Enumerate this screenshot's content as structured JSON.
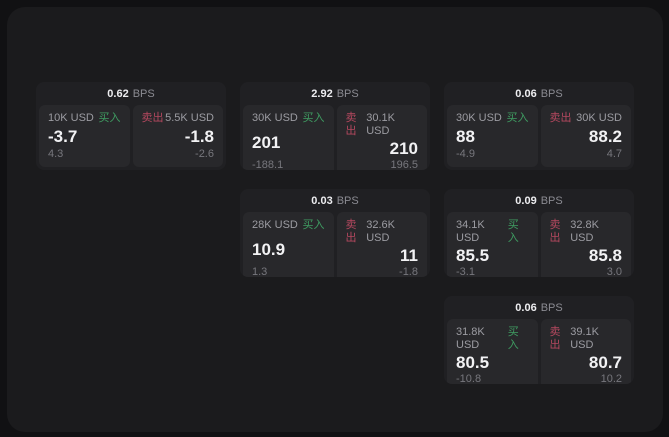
{
  "labels": {
    "buy": "买入",
    "sell": "卖出",
    "bps_suffix": "BPS"
  },
  "colors": {
    "buy_green": "#3f9d62",
    "sell_red": "#b5485f",
    "panel_bg": "#1b1b1d",
    "card_bg": "#202023",
    "cell_bg": "#28282b"
  },
  "cards": [
    {
      "bps": "0.62",
      "buy": {
        "amount": "10K USD",
        "value": "-3.7",
        "sub": "4.3"
      },
      "sell": {
        "amount": "5.5K USD",
        "value": "-1.8",
        "sub": "-2.6"
      }
    },
    {
      "bps": "2.92",
      "buy": {
        "amount": "30K USD",
        "value": "201",
        "sub": "-188.1"
      },
      "sell": {
        "amount": "30.1K USD",
        "value": "210",
        "sub": "196.5"
      }
    },
    {
      "bps": "0.06",
      "buy": {
        "amount": "30K USD",
        "value": "88",
        "sub": "-4.9"
      },
      "sell": {
        "amount": "30K USD",
        "value": "88.2",
        "sub": "4.7"
      }
    },
    {
      "bps": "0.03",
      "buy": {
        "amount": "28K USD",
        "value": "10.9",
        "sub": "1.3"
      },
      "sell": {
        "amount": "32.6K USD",
        "value": "11",
        "sub": "-1.8"
      }
    },
    {
      "bps": "0.09",
      "buy": {
        "amount": "34.1K USD",
        "value": "85.5",
        "sub": "-3.1"
      },
      "sell": {
        "amount": "32.8K USD",
        "value": "85.8",
        "sub": "3.0"
      }
    },
    {
      "bps": "0.06",
      "buy": {
        "amount": "31.8K USD",
        "value": "80.5",
        "sub": "-10.8"
      },
      "sell": {
        "amount": "39.1K USD",
        "value": "80.7",
        "sub": "10.2"
      }
    }
  ]
}
